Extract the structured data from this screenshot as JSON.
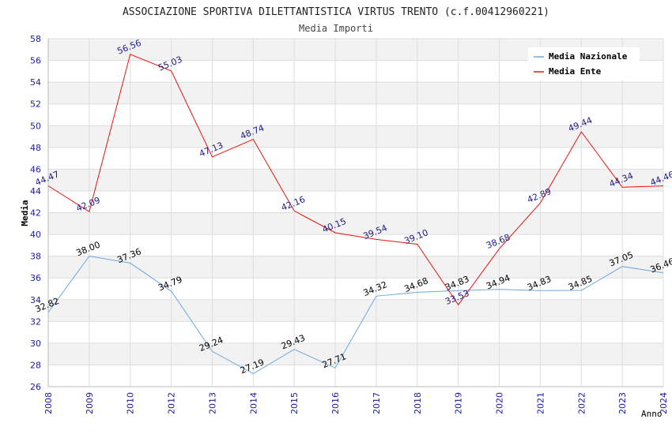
{
  "chart_data": {
    "type": "line",
    "title": "ASSOCIAZIONE SPORTIVA DILETTANTISTICA VIRTUS TRENTO (c.f.00412960221)",
    "subtitle": "Media Importi",
    "xlabel": "Anno",
    "ylabel": "Media",
    "ylim": [
      26,
      58
    ],
    "ytick_step": 2,
    "yticks": [
      "26",
      "28",
      "30",
      "32",
      "34",
      "36",
      "38",
      "40",
      "42",
      "44",
      "46",
      "48",
      "50",
      "52",
      "54",
      "56",
      "58"
    ],
    "grid": true,
    "legend_position": "top-right",
    "categories": [
      "2008",
      "2009",
      "2010",
      "2012",
      "2013",
      "2014",
      "2015",
      "2016",
      "2017",
      "2018",
      "2019",
      "2020",
      "2021",
      "2022",
      "2023",
      "2024"
    ],
    "series": [
      {
        "name": "Media Nazionale",
        "color": "#6fa8dc",
        "label_color": "#000000",
        "values": [
          32.82,
          38.0,
          37.36,
          34.79,
          29.24,
          27.19,
          29.43,
          27.71,
          34.32,
          34.68,
          34.83,
          34.94,
          34.83,
          34.85,
          37.05,
          36.46
        ],
        "labels": [
          "32.82",
          "38.00",
          "37.36",
          "34.79",
          "29.24",
          "27.19",
          "29.43",
          "27.71",
          "34.32",
          "34.68",
          "34.83",
          "34.94",
          "34.83",
          "34.85",
          "37.05",
          "36.46"
        ]
      },
      {
        "name": "Media Ente",
        "color": "#e8140c",
        "label_color": "#1a1a8c",
        "values": [
          44.47,
          42.09,
          56.56,
          55.03,
          47.13,
          48.74,
          42.16,
          40.15,
          39.54,
          39.1,
          33.53,
          38.68,
          42.89,
          49.44,
          44.34,
          44.46
        ],
        "labels": [
          "44.47",
          "42.09",
          "56.56",
          "55.03",
          "47.13",
          "48.74",
          "42.16",
          "40.15",
          "39.54",
          "39.10",
          "33.53",
          "38.68",
          "42.89",
          "49.44",
          "44.34",
          "44.46"
        ]
      }
    ]
  }
}
